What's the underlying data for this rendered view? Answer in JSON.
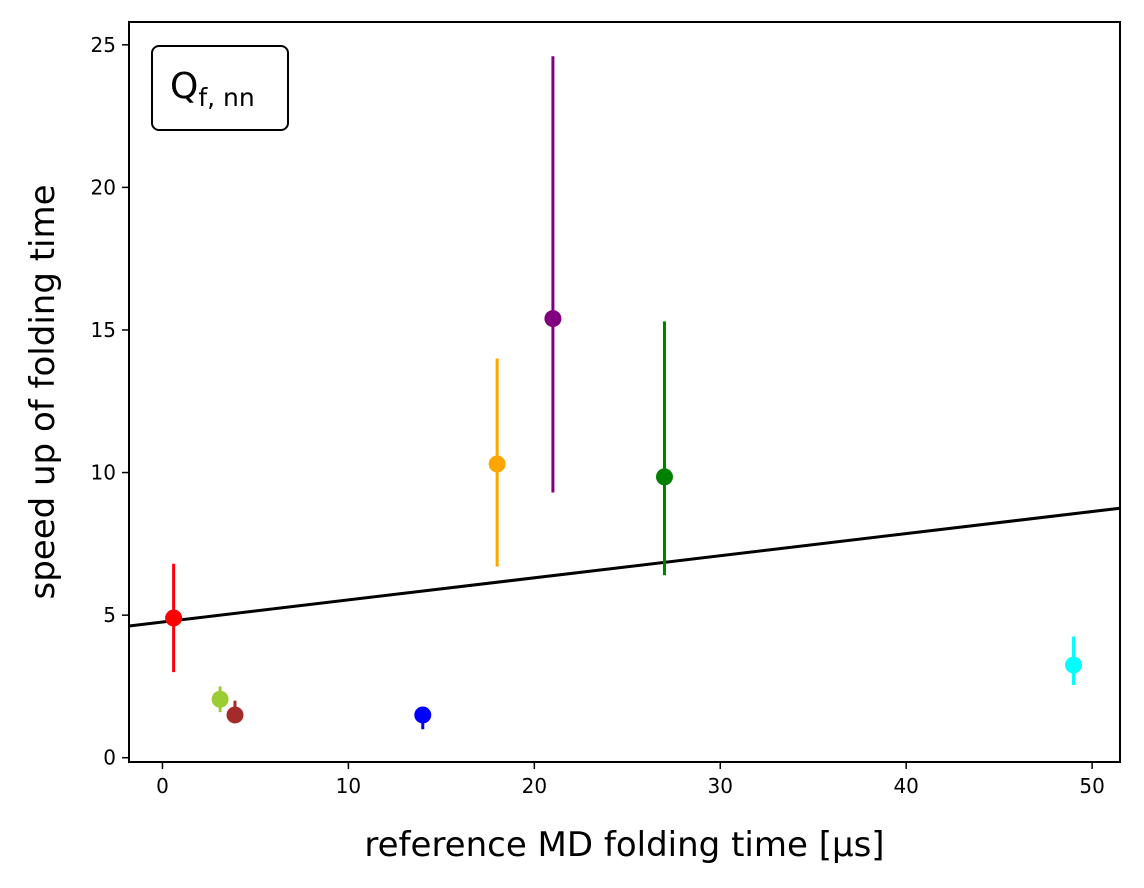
{
  "chart_data": {
    "type": "scatter",
    "title": "",
    "xlabel": "reference MD folding time [μs]",
    "ylabel": "speed up of folding time",
    "xlim": [
      -1.8,
      51.5
    ],
    "ylim": [
      -0.15,
      25.8
    ],
    "xticks": [
      0,
      10,
      20,
      30,
      40,
      50
    ],
    "yticks": [
      0,
      5,
      10,
      15,
      20,
      25
    ],
    "grid": false,
    "legend": {
      "text_main": "Q",
      "text_sub": "f, nn",
      "placement": "top-left"
    },
    "points": [
      {
        "x": 0.6,
        "y": 4.9,
        "ylow": 3.0,
        "yhigh": 6.8,
        "color": "#ff0000"
      },
      {
        "x": 3.1,
        "y": 2.05,
        "ylow": 1.6,
        "yhigh": 2.5,
        "color": "#9acd32"
      },
      {
        "x": 3.9,
        "y": 1.5,
        "ylow": 1.3,
        "yhigh": 2.0,
        "color": "#a52a2a"
      },
      {
        "x": 14.0,
        "y": 1.5,
        "ylow": 1.0,
        "yhigh": 1.7,
        "color": "#0000ff"
      },
      {
        "x": 18.0,
        "y": 10.3,
        "ylow": 6.7,
        "yhigh": 14.0,
        "color": "#ffa500"
      },
      {
        "x": 21.0,
        "y": 15.4,
        "ylow": 9.3,
        "yhigh": 24.6,
        "color": "#800080"
      },
      {
        "x": 27.0,
        "y": 9.85,
        "ylow": 6.4,
        "yhigh": 15.3,
        "color": "#008000"
      },
      {
        "x": 49.0,
        "y": 3.25,
        "ylow": 2.55,
        "yhigh": 4.25,
        "color": "#00ffff"
      }
    ],
    "fit_line": {
      "x": [
        -1.8,
        51.5
      ],
      "y": [
        4.62,
        8.75
      ],
      "color": "#000000"
    }
  }
}
